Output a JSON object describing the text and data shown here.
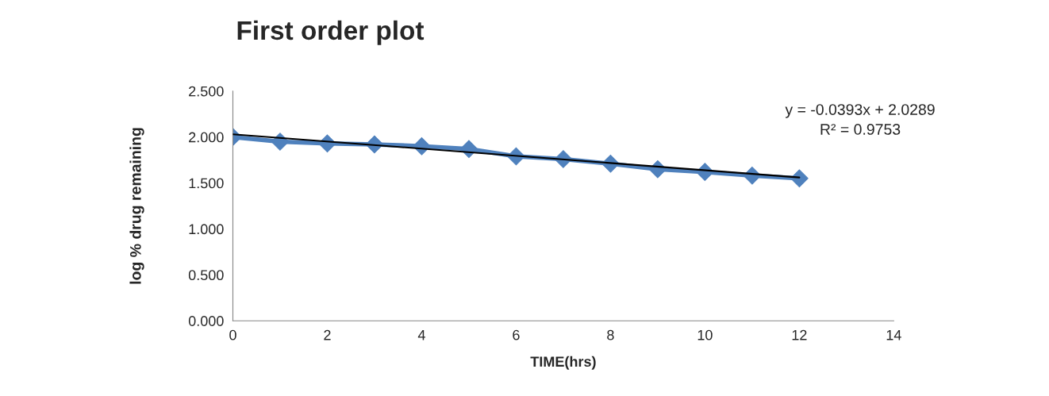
{
  "chart_data": {
    "type": "line",
    "title": "First order plot",
    "xlabel": "TIME(hrs)",
    "ylabel": "log % drug remaining",
    "x": [
      0,
      1,
      2,
      3,
      4,
      5,
      6,
      7,
      8,
      9,
      10,
      11,
      12
    ],
    "series": [
      {
        "color": "#4f81bd",
        "marker": "diamond",
        "values": [
          2.0,
          1.95,
          1.93,
          1.92,
          1.9,
          1.87,
          1.79,
          1.76,
          1.71,
          1.65,
          1.62,
          1.58,
          1.55
        ]
      },
      {
        "type": "line",
        "color": "#000000",
        "marker": "none",
        "x": [
          0,
          12
        ],
        "values": [
          2.03,
          1.56
        ]
      }
    ],
    "annotations": [
      "y = -0.0393x + 2.0289",
      "R² = 0.9753"
    ],
    "xlim": [
      0,
      14
    ],
    "xticks": [
      0,
      2,
      4,
      6,
      8,
      10,
      12,
      14
    ],
    "ylim": [
      0,
      2.5
    ],
    "yticks": [
      {
        "value": 0,
        "label": "0.000"
      },
      {
        "value": 0.5,
        "label": "0.500"
      },
      {
        "value": 1,
        "label": "1.000"
      },
      {
        "value": 1.5,
        "label": "1.500"
      },
      {
        "value": 2,
        "label": "2.000"
      },
      {
        "value": 2.5,
        "label": "2.500"
      }
    ],
    "grid": false
  }
}
